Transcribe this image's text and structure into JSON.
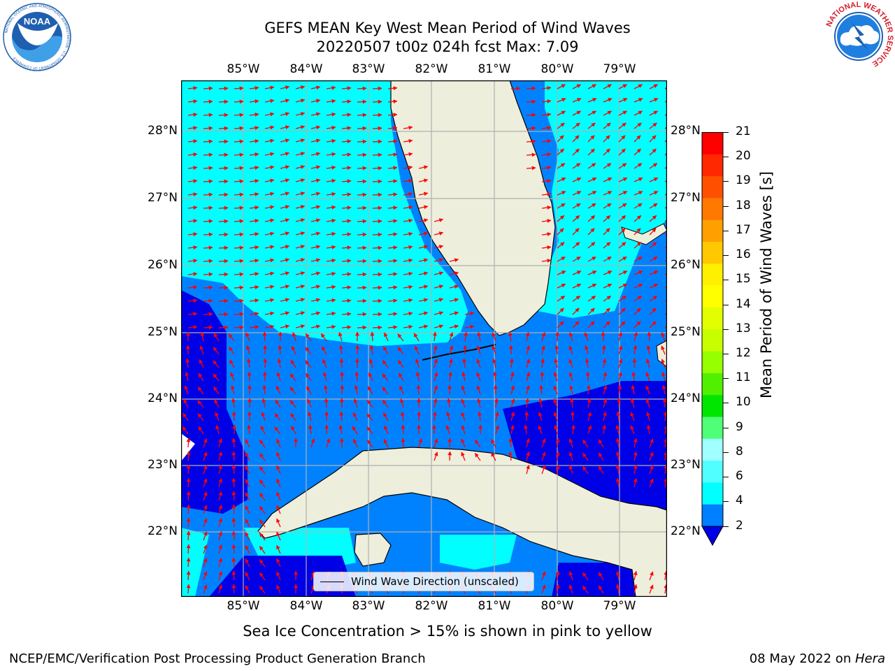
{
  "header": {
    "title_line1": "GEFS MEAN Key West Mean Period of Wind Waves",
    "title_line2": "20220507 t00z 024h fcst   Max: 7.09"
  },
  "logos": {
    "noaa": {
      "text": "NOAA",
      "ring_text": "NATIONAL OCEANIC AND ATMOSPHERIC ADMINISTRATION · U.S. DEPARTMENT OF COMMERCE",
      "color": "#1f5fb0"
    },
    "nws": {
      "ring_text": "NATIONAL WEATHER SERVICE",
      "color": "#d21f2b"
    }
  },
  "map": {
    "lon_labels": [
      "85°W",
      "84°W",
      "83°W",
      "82°W",
      "81°W",
      "80°W",
      "79°W"
    ],
    "lat_labels": [
      "28°N",
      "27°N",
      "26°N",
      "25°N",
      "24°N",
      "23°N",
      "22°N"
    ],
    "legend_label": "Wind Wave Direction (unscaled)",
    "colors": {
      "land": "#eeeedc",
      "ocean_2_4": "#0082ff",
      "ocean_4_6": "#00ffff",
      "ocean_lt2": "#0000e6",
      "arrow": "#ff0000",
      "grid": "#b0b0b0"
    }
  },
  "colorbar": {
    "label": "Mean Period of Wind Waves [s]",
    "ticks": [
      "21",
      "20",
      "19",
      "18",
      "17",
      "16",
      "15",
      "14",
      "13",
      "12",
      "11",
      "10",
      "9",
      "8",
      "6",
      "4",
      "2"
    ],
    "colors": [
      "#ff0000",
      "#ff2800",
      "#ff5000",
      "#ff7800",
      "#ffa000",
      "#ffc800",
      "#fff000",
      "#ffff00",
      "#e1ff00",
      "#c8ff00",
      "#96ff00",
      "#50f000",
      "#00e600",
      "#50ff78",
      "#a0ffff",
      "#50ffff",
      "#00ffff",
      "#0080ff"
    ],
    "under_color": "#0000e6"
  },
  "footer": {
    "sea_ice_note": "Sea Ice Concentration > 15% is shown in pink to yellow",
    "branch": "NCEP/EMC/Verification Post Processing Product Generation Branch",
    "date_prefix": "08 May 2022 on ",
    "machine": "Hera"
  }
}
